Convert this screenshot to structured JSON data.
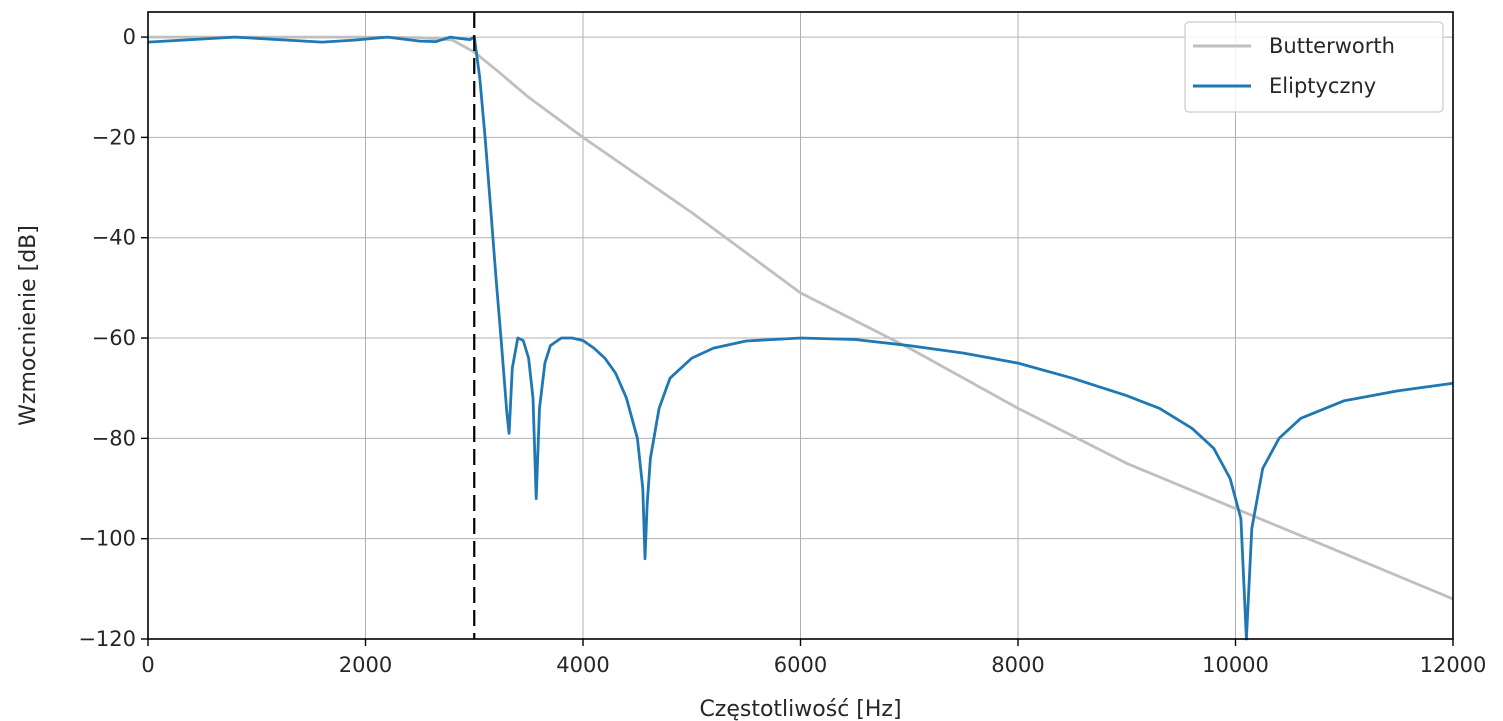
{
  "chart_data": {
    "type": "line",
    "title": "",
    "xlabel": "Częstotliwość [Hz]",
    "ylabel": "Wzmocnienie [dB]",
    "xlim": [
      0,
      12000
    ],
    "ylim": [
      -120,
      5
    ],
    "xticks": [
      0,
      2000,
      4000,
      6000,
      8000,
      10000,
      12000
    ],
    "yticks": [
      0,
      -20,
      -40,
      -60,
      -80,
      -100,
      -120
    ],
    "xtick_labels": [
      "0",
      "2000",
      "4000",
      "6000",
      "8000",
      "10000",
      "12000"
    ],
    "ytick_labels": [
      "0",
      "−20",
      "−40",
      "−60",
      "−80",
      "−100",
      "−120"
    ],
    "grid": true,
    "legend_position": "top-right",
    "cutoff_line": {
      "x": 3000,
      "style": "dashed",
      "color": "#000000"
    },
    "series": [
      {
        "name": "Butterworth",
        "color": "#bfbfbf",
        "x": [
          0,
          1000,
          2000,
          2500,
          2800,
          3000,
          3200,
          3500,
          4000,
          4500,
          5000,
          6000,
          7000,
          8000,
          9000,
          10000,
          11000,
          12000
        ],
        "y": [
          0,
          0,
          0,
          -0.1,
          -0.6,
          -3,
          -6.5,
          -12,
          -20,
          -27.5,
          -35,
          -51,
          -62,
          -74,
          -85,
          -94,
          -103,
          -112
        ]
      },
      {
        "name": "Eliptyczny",
        "color": "#1f77b4",
        "x": [
          0,
          400,
          800,
          1200,
          1600,
          1900,
          2200,
          2500,
          2650,
          2780,
          2880,
          2960,
          3000,
          3050,
          3100,
          3150,
          3200,
          3250,
          3300,
          3320,
          3350,
          3400,
          3450,
          3500,
          3540,
          3570,
          3600,
          3650,
          3700,
          3800,
          3900,
          4000,
          4100,
          4200,
          4300,
          4400,
          4500,
          4550,
          4570,
          4590,
          4620,
          4700,
          4800,
          5000,
          5200,
          5500,
          6000,
          6500,
          7000,
          7500,
          8000,
          8500,
          9000,
          9300,
          9600,
          9800,
          9950,
          10050,
          10100,
          10150,
          10250,
          10400,
          10600,
          11000,
          11500,
          12000
        ],
        "y": [
          -1,
          -0.5,
          0,
          -0.5,
          -1,
          -0.6,
          0,
          -0.8,
          -0.9,
          0,
          -0.3,
          -0.5,
          0,
          -8,
          -20,
          -34,
          -48,
          -61,
          -75,
          -79,
          -66,
          -60,
          -60.5,
          -64,
          -72,
          -92,
          -74,
          -65,
          -61.5,
          -60,
          -60,
          -60.5,
          -62,
          -64,
          -67,
          -72,
          -80,
          -90,
          -104,
          -93,
          -84,
          -74,
          -68,
          -64,
          -62,
          -60.6,
          -60,
          -60.3,
          -61.5,
          -63,
          -65,
          -68,
          -71.5,
          -74,
          -78,
          -82,
          -88,
          -96,
          -120,
          -98,
          -86,
          -80,
          -76,
          -72.5,
          -70.5,
          -69
        ]
      }
    ]
  }
}
